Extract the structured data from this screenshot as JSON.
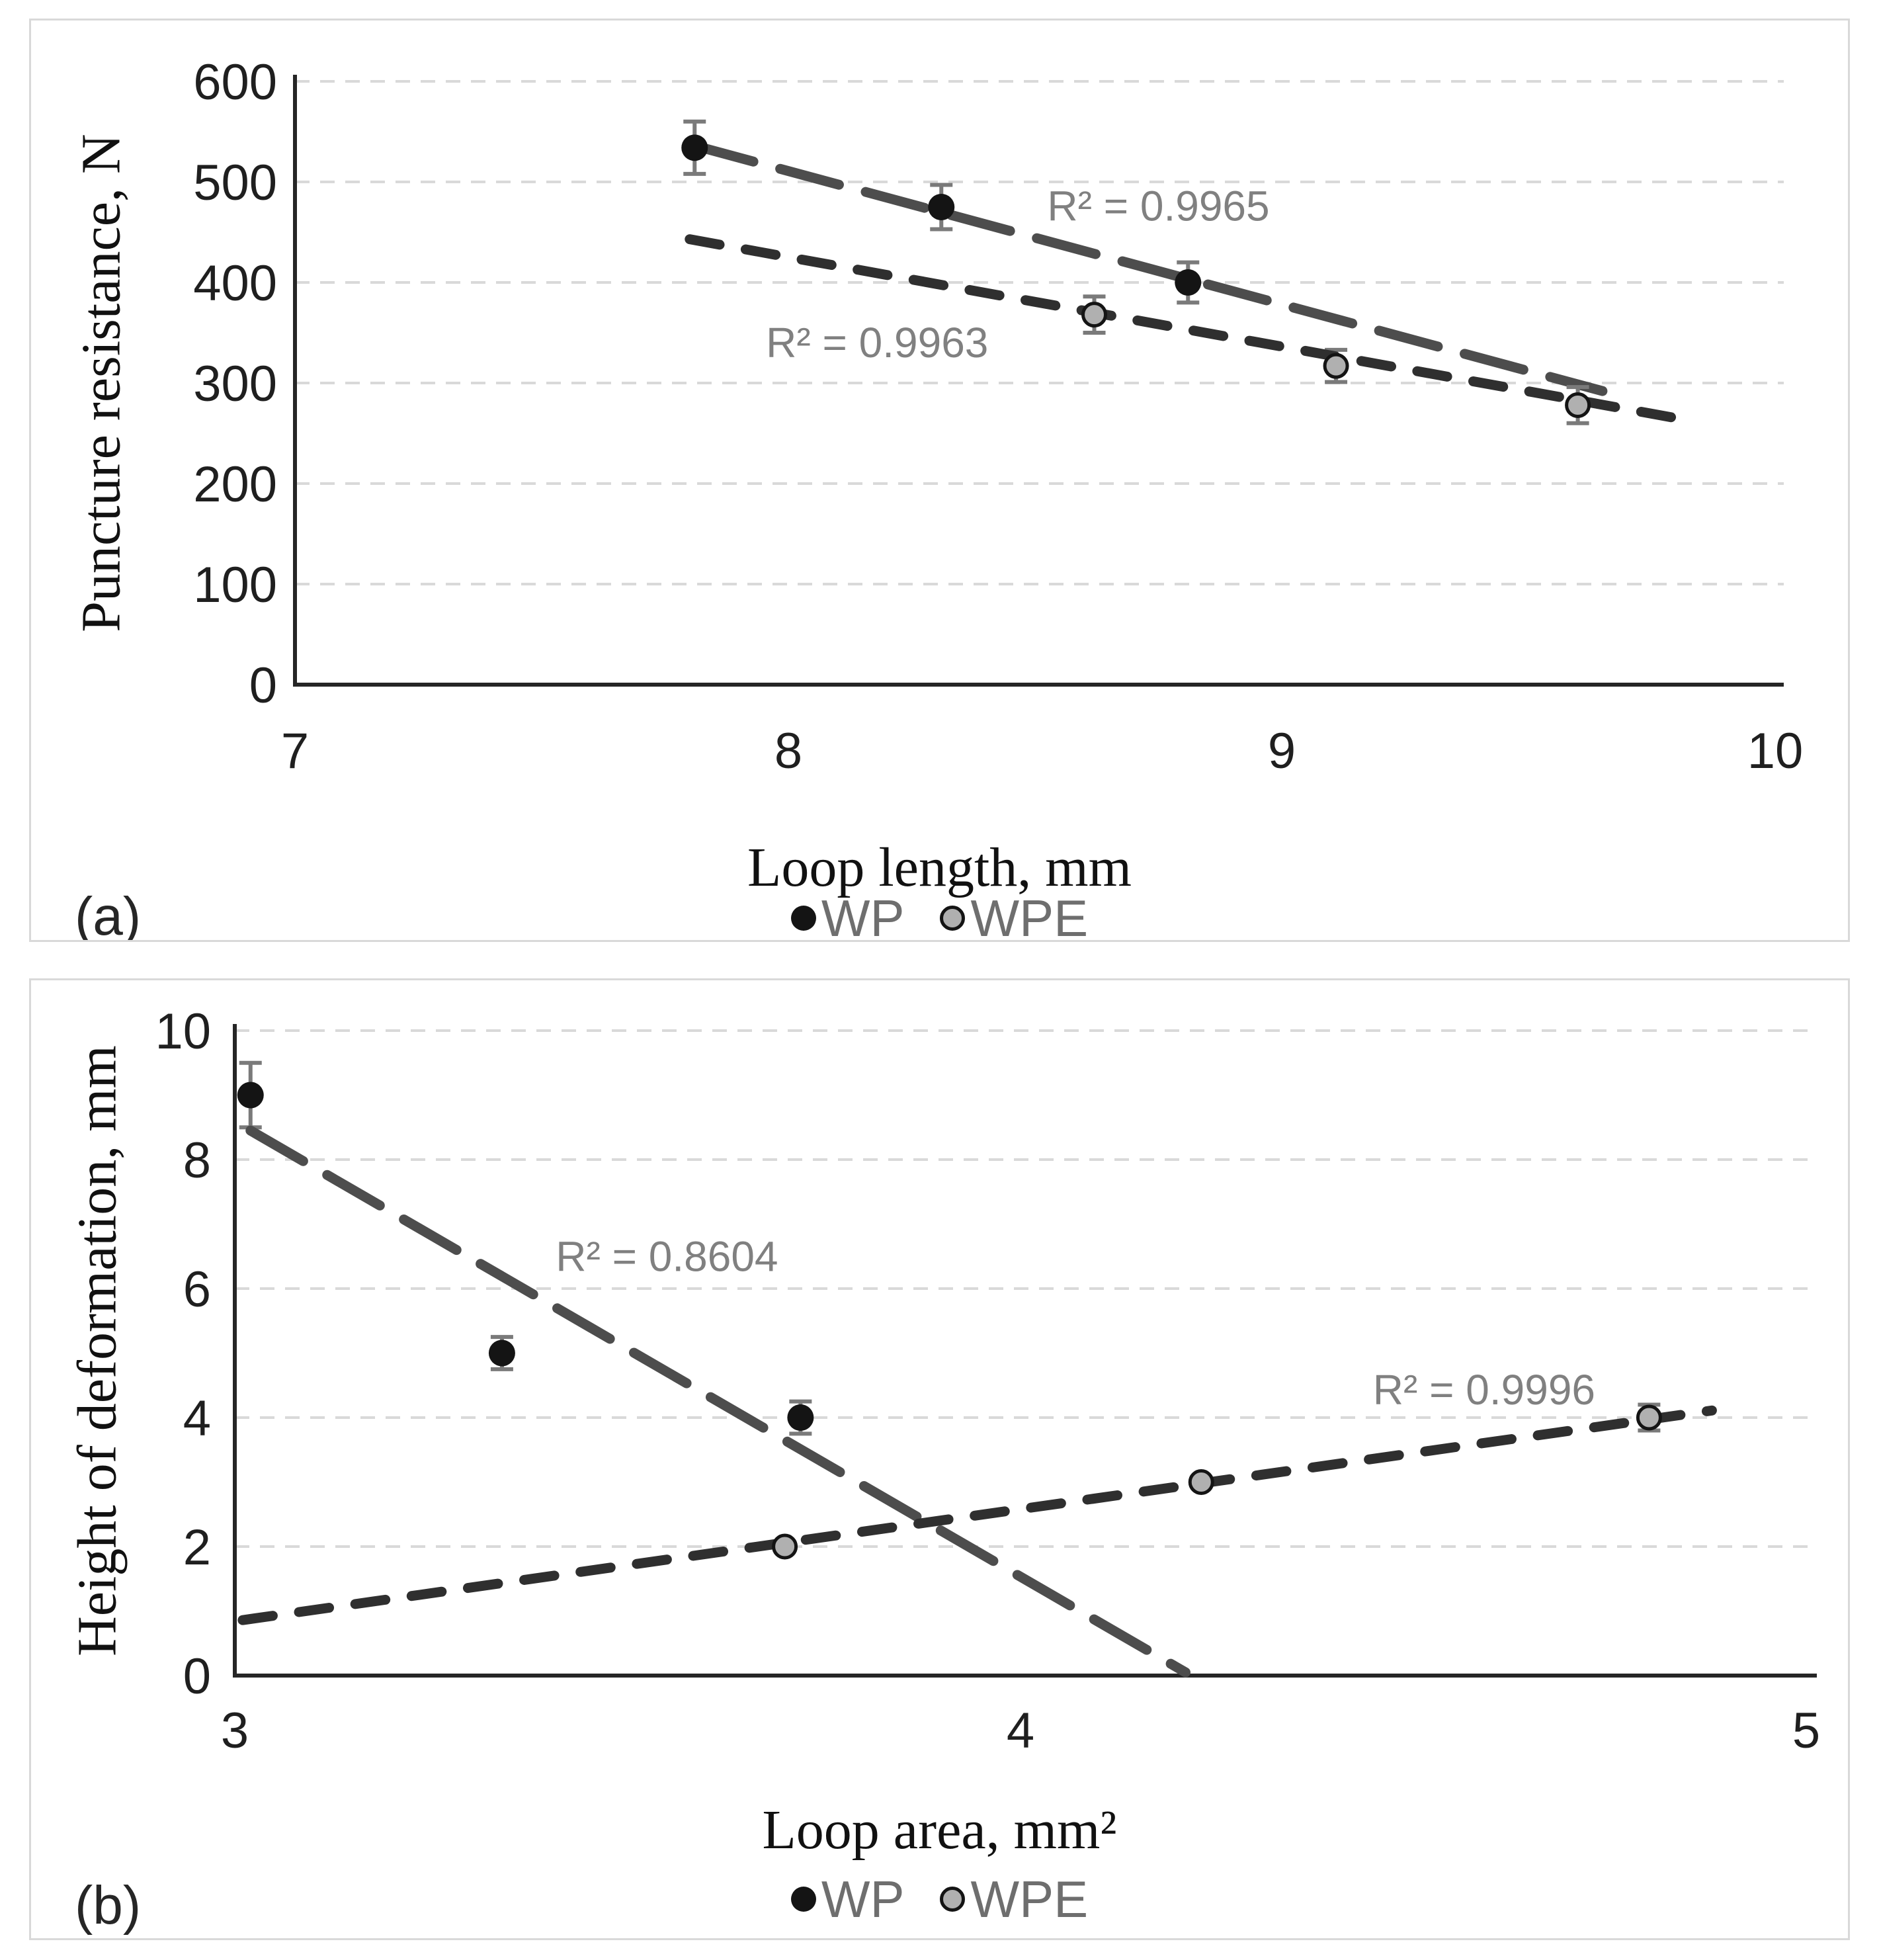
{
  "figure": {
    "background_color": "#ffffff",
    "panel_border_color": "#d9d9d9",
    "gridline_color": "#d9d9d9",
    "axis_color": "#262626",
    "error_bar_color": "#7a7a7a",
    "r2_text_color": "#808080",
    "legend_text_color": "#6e6e6e"
  },
  "chart_data": [
    {
      "id": "a",
      "type": "scatter",
      "panel_label": "(a)",
      "xlabel": "Loop length, mm",
      "ylabel": "Puncture resistance, N",
      "xlim": [
        7,
        10
      ],
      "xticks": [
        7,
        8,
        9,
        10
      ],
      "ylim": [
        0,
        600
      ],
      "yticks": [
        0,
        100,
        200,
        300,
        400,
        500,
        600
      ],
      "grid": "horizontal-dashed",
      "legend_position": "bottom-center",
      "series": [
        {
          "name": "WP",
          "marker": "filled-black-circle",
          "marker_color": "#141414",
          "outlined": false,
          "points": [
            {
              "x": 7.81,
              "y": 534,
              "err": 26
            },
            {
              "x": 8.31,
              "y": 475,
              "err": 22
            },
            {
              "x": 8.81,
              "y": 400,
              "err": 20
            }
          ],
          "trendline": {
            "style": "long-dash",
            "color": "#4d4d4d",
            "x1": 7.81,
            "y1": 536,
            "x2": 9.65,
            "y2": 292,
            "r2_label": "R² = 0.9965",
            "label_x": 8.75,
            "label_y": 476
          }
        },
        {
          "name": "WPE",
          "marker": "gray-circle-black-outline",
          "marker_color": "#b0b0b0",
          "outlined": true,
          "points": [
            {
              "x": 8.62,
              "y": 368,
              "err": 18
            },
            {
              "x": 9.11,
              "y": 317,
              "err": 16
            },
            {
              "x": 9.6,
              "y": 278,
              "err": 18
            }
          ],
          "trendline": {
            "style": "short-dash",
            "color": "#2f2f2f",
            "x1": 7.8,
            "y1": 443,
            "x2": 9.8,
            "y2": 265,
            "r2_label": "R² = 0.9963",
            "label_x": 8.18,
            "label_y": 340
          }
        }
      ],
      "legend": [
        {
          "label": "WP",
          "color": "#141414",
          "outlined": false
        },
        {
          "label": "WPE",
          "color": "#b0b0b0",
          "outlined": true
        }
      ]
    },
    {
      "id": "b",
      "type": "scatter",
      "panel_label": "(b)",
      "xlabel": "Loop area, mm²",
      "ylabel": "Height of deformation, mm",
      "xlim": [
        3,
        5
      ],
      "xticks": [
        3,
        4,
        5
      ],
      "ylim": [
        0,
        10
      ],
      "yticks": [
        0,
        2,
        4,
        6,
        8,
        10
      ],
      "grid": "horizontal-dashed",
      "legend_position": "bottom-center",
      "series": [
        {
          "name": "WP",
          "marker": "filled-black-circle",
          "marker_color": "#141414",
          "outlined": false,
          "points": [
            {
              "x": 3.02,
              "y": 9.0,
              "err": 0.5
            },
            {
              "x": 3.34,
              "y": 5.0,
              "err": 0.25
            },
            {
              "x": 3.72,
              "y": 4.0,
              "err": 0.25
            }
          ],
          "trendline": {
            "style": "long-dash",
            "color": "#4d4d4d",
            "x1": 3.02,
            "y1": 8.45,
            "x2": 4.21,
            "y2": 0.05,
            "r2_label": "R² = 0.8604",
            "label_x": 3.55,
            "label_y": 6.5
          }
        },
        {
          "name": "WPE",
          "marker": "gray-circle-black-outline",
          "marker_color": "#b0b0b0",
          "outlined": true,
          "points": [
            {
              "x": 3.7,
              "y": 2.0,
              "err": 0
            },
            {
              "x": 4.23,
              "y": 3.0,
              "err": 0
            },
            {
              "x": 4.8,
              "y": 4.0,
              "err": 0.2
            }
          ],
          "trendline": {
            "style": "short-dash",
            "color": "#2f2f2f",
            "x1": 3.01,
            "y1": 0.86,
            "x2": 4.88,
            "y2": 4.11,
            "r2_label": "R² = 0.9996",
            "label_x": 4.59,
            "label_y": 4.43
          }
        }
      ],
      "legend": [
        {
          "label": "WP",
          "color": "#141414",
          "outlined": false
        },
        {
          "label": "WPE",
          "color": "#b0b0b0",
          "outlined": true
        }
      ]
    }
  ]
}
